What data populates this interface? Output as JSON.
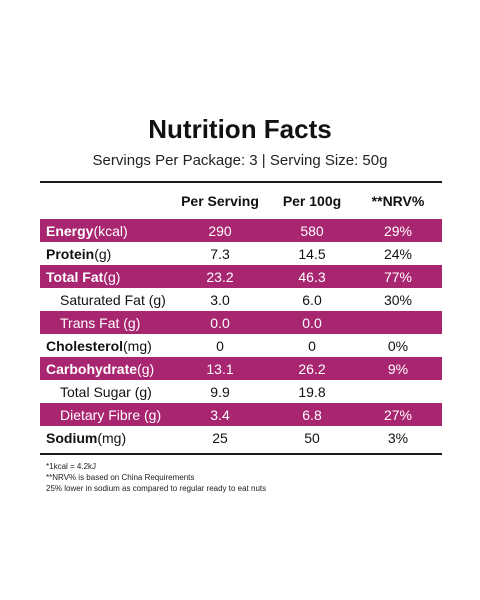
{
  "title": "Nutrition Facts",
  "subtitle": "Servings Per Package: 3 | Serving Size: 50g",
  "headers": {
    "per_serving": "Per Serving",
    "per_100g": "Per 100g",
    "nrv": "**NRV%"
  },
  "rows": [
    {
      "name": "Energy",
      "unit": " (kcal)",
      "per_serving": "290",
      "per_100g": "580",
      "nrv": "29%"
    },
    {
      "name": "Protein",
      "unit": " (g)",
      "per_serving": "7.3",
      "per_100g": "14.5",
      "nrv": "24%"
    },
    {
      "name": "Total Fat",
      "unit": " (g)",
      "per_serving": "23.2",
      "per_100g": "46.3",
      "nrv": "77%"
    },
    {
      "name": "Saturated Fat (g)",
      "unit": "",
      "per_serving": "3.0",
      "per_100g": "6.0",
      "nrv": "30%"
    },
    {
      "name": "Trans Fat (g)",
      "unit": "",
      "per_serving": "0.0",
      "per_100g": "0.0",
      "nrv": ""
    },
    {
      "name": "Cholesterol",
      "unit": " (mg)",
      "per_serving": "0",
      "per_100g": "0",
      "nrv": "0%"
    },
    {
      "name": "Carbohydrate",
      "unit": " (g)",
      "per_serving": "13.1",
      "per_100g": "26.2",
      "nrv": "9%"
    },
    {
      "name": "Total Sugar (g)",
      "unit": "",
      "per_serving": "9.9",
      "per_100g": "19.8",
      "nrv": ""
    },
    {
      "name": "Dietary Fibre (g)",
      "unit": "",
      "per_serving": "3.4",
      "per_100g": "6.8",
      "nrv": "27%"
    },
    {
      "name": "Sodium",
      "unit": " (mg)",
      "per_serving": "25",
      "per_100g": "50",
      "nrv": "3%"
    }
  ],
  "footnotes": [
    "*1kcal = 4.2kJ",
    "**NRV% is based on China Requirements",
    "25% lower in sodium as compared to regular ready to eat nuts"
  ],
  "colors": {
    "accent": "#a8256f",
    "text": "#111111"
  }
}
